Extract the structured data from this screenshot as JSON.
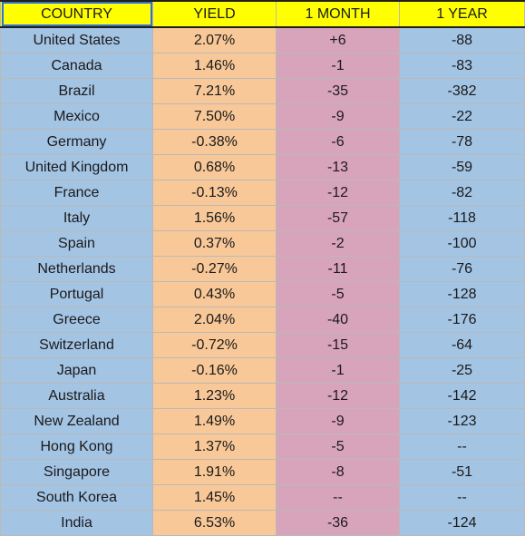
{
  "columns": {
    "country": "COUNTRY",
    "yield": "YIELD",
    "month": "1 MONTH",
    "year": "1 YEAR"
  },
  "colors": {
    "header": "#ffff00",
    "country": "#a4c4e4",
    "yield": "#f8c898",
    "month": "#d8a4bc",
    "year": "#a4c4e4"
  },
  "rows": [
    {
      "country": "United States",
      "yield": "2.07%",
      "month": "+6",
      "year": "-88"
    },
    {
      "country": "Canada",
      "yield": "1.46%",
      "month": "-1",
      "year": "-83"
    },
    {
      "country": "Brazil",
      "yield": "7.21%",
      "month": "-35",
      "year": "-382"
    },
    {
      "country": "Mexico",
      "yield": "7.50%",
      "month": "-9",
      "year": "-22"
    },
    {
      "country": "Germany",
      "yield": "-0.38%",
      "month": "-6",
      "year": "-78"
    },
    {
      "country": "United Kingdom",
      "yield": "0.68%",
      "month": "-13",
      "year": "-59"
    },
    {
      "country": "France",
      "yield": "-0.13%",
      "month": "-12",
      "year": "-82"
    },
    {
      "country": "Italy",
      "yield": "1.56%",
      "month": "-57",
      "year": "-118"
    },
    {
      "country": "Spain",
      "yield": "0.37%",
      "month": "-2",
      "year": "-100"
    },
    {
      "country": "Netherlands",
      "yield": "-0.27%",
      "month": "-11",
      "year": "-76"
    },
    {
      "country": "Portugal",
      "yield": "0.43%",
      "month": "-5",
      "year": "-128"
    },
    {
      "country": "Greece",
      "yield": "2.04%",
      "month": "-40",
      "year": "-176"
    },
    {
      "country": "Switzerland",
      "yield": "-0.72%",
      "month": "-15",
      "year": "-64"
    },
    {
      "country": "Japan",
      "yield": "-0.16%",
      "month": "-1",
      "year": "-25"
    },
    {
      "country": "Australia",
      "yield": "1.23%",
      "month": "-12",
      "year": "-142"
    },
    {
      "country": "New Zealand",
      "yield": "1.49%",
      "month": "-9",
      "year": "-123"
    },
    {
      "country": "Hong Kong",
      "yield": "1.37%",
      "month": "-5",
      "year": "--"
    },
    {
      "country": "Singapore",
      "yield": "1.91%",
      "month": "-8",
      "year": "-51"
    },
    {
      "country": "South Korea",
      "yield": "1.45%",
      "month": "--",
      "year": "--"
    },
    {
      "country": "India",
      "yield": "6.53%",
      "month": "-36",
      "year": "-124"
    }
  ]
}
